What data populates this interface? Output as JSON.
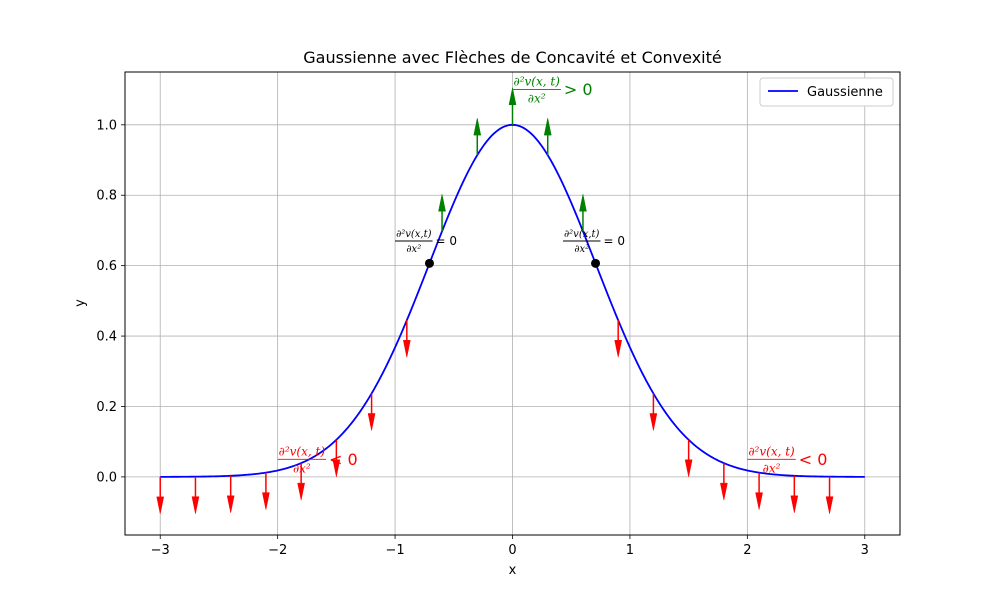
{
  "chart_data": {
    "type": "line",
    "title": "Gaussienne avec Flèches de Concavité et Convexité",
    "xlabel": "x",
    "ylabel": "y",
    "xlim": [
      -3.3,
      3.3
    ],
    "ylim": [
      -0.165,
      1.15
    ],
    "xticks": [
      -3,
      -2,
      -1,
      0,
      1,
      2,
      3
    ],
    "xtick_labels": [
      "−3",
      "−2",
      "−1",
      "0",
      "1",
      "2",
      "3"
    ],
    "yticks": [
      0.0,
      0.2,
      0.4,
      0.6,
      0.8,
      1.0
    ],
    "ytick_labels": [
      "0.0",
      "0.2",
      "0.4",
      "0.6",
      "0.8",
      "1.0"
    ],
    "grid": true,
    "legend_position": "upper right",
    "series": [
      {
        "name": "Gaussienne",
        "color": "#0000ff",
        "function": "y = exp(-x^2)",
        "x_range": [
          -3,
          3
        ]
      }
    ],
    "arrows": [
      {
        "x": -3.0,
        "direction": "down",
        "color": "#ff0000"
      },
      {
        "x": -2.7,
        "direction": "down",
        "color": "#ff0000"
      },
      {
        "x": -2.4,
        "direction": "down",
        "color": "#ff0000"
      },
      {
        "x": -2.1,
        "direction": "down",
        "color": "#ff0000"
      },
      {
        "x": -1.8,
        "direction": "down",
        "color": "#ff0000"
      },
      {
        "x": -1.5,
        "direction": "down",
        "color": "#ff0000"
      },
      {
        "x": -1.2,
        "direction": "down",
        "color": "#ff0000"
      },
      {
        "x": -0.9,
        "direction": "down",
        "color": "#ff0000"
      },
      {
        "x": -0.6,
        "direction": "up",
        "color": "#008000"
      },
      {
        "x": -0.3,
        "direction": "up",
        "color": "#008000"
      },
      {
        "x": 0.0,
        "direction": "up",
        "color": "#008000"
      },
      {
        "x": 0.3,
        "direction": "up",
        "color": "#008000"
      },
      {
        "x": 0.6,
        "direction": "up",
        "color": "#008000"
      },
      {
        "x": 0.9,
        "direction": "down",
        "color": "#ff0000"
      },
      {
        "x": 1.2,
        "direction": "down",
        "color": "#ff0000"
      },
      {
        "x": 1.5,
        "direction": "down",
        "color": "#ff0000"
      },
      {
        "x": 1.8,
        "direction": "down",
        "color": "#ff0000"
      },
      {
        "x": 2.1,
        "direction": "down",
        "color": "#ff0000"
      },
      {
        "x": 2.4,
        "direction": "down",
        "color": "#ff0000"
      },
      {
        "x": 2.7,
        "direction": "down",
        "color": "#ff0000"
      }
    ],
    "inflection_points": [
      {
        "x": -0.7071,
        "y": 0.6065
      },
      {
        "x": 0.7071,
        "y": 0.6065
      }
    ],
    "annotations": [
      {
        "id": "concave-up",
        "numerator": "∂²v(x, t)",
        "denominator": "∂x²",
        "suffix": "> 0",
        "x": 0.0,
        "y": 1.1,
        "color": "#008000",
        "size": "large"
      },
      {
        "id": "inflection-left",
        "numerator": "∂²v(x,t)",
        "denominator": "∂x²",
        "suffix": "= 0",
        "x": -1.0,
        "y": 0.67,
        "color": "#000000",
        "size": "small"
      },
      {
        "id": "inflection-right",
        "numerator": "∂²v(x,t)",
        "denominator": "∂x²",
        "suffix": "= 0",
        "x": 0.43,
        "y": 0.67,
        "color": "#000000",
        "size": "small"
      },
      {
        "id": "concave-down-left",
        "numerator": "∂²v(x, t)",
        "denominator": "∂x²",
        "suffix": "< 0",
        "x": -2.0,
        "y": 0.05,
        "color": "#ff0000",
        "size": "large"
      },
      {
        "id": "concave-down-right",
        "numerator": "∂²v(x, t)",
        "denominator": "∂x²",
        "suffix": "< 0",
        "x": 2.0,
        "y": 0.05,
        "color": "#ff0000",
        "size": "large"
      }
    ]
  }
}
